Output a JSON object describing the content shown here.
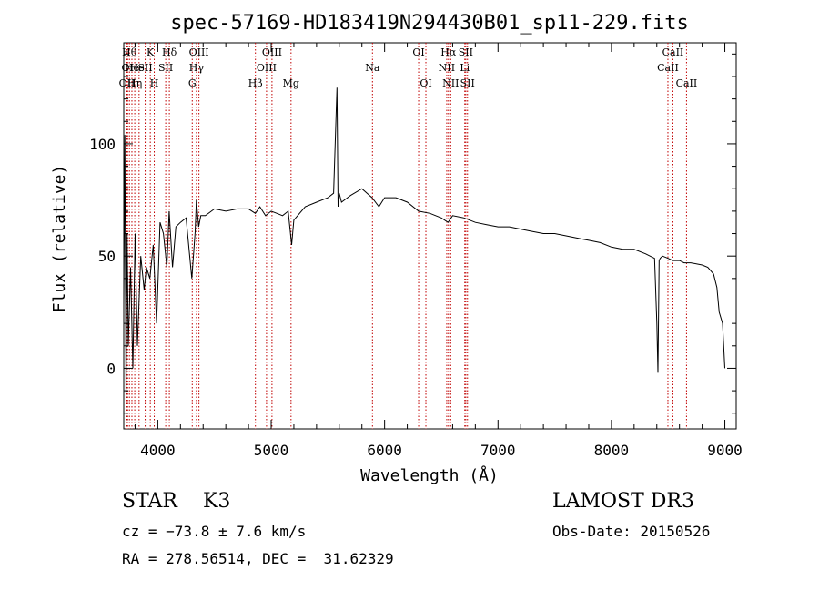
{
  "chart_data": {
    "type": "line",
    "title": "spec-57169-HD183419N294430B01_sp11-229.fits",
    "xlabel": "Wavelength (Å)",
    "ylabel": "Flux (relative)",
    "xlim": [
      3700,
      9100
    ],
    "ylim": [
      -27,
      145
    ],
    "xticks": [
      4000,
      5000,
      6000,
      7000,
      8000,
      9000
    ],
    "yticks": [
      0,
      50,
      100
    ],
    "grid": false,
    "series": [
      {
        "name": "spectrum",
        "x": [
          3700,
          3710,
          3720,
          3730,
          3740,
          3760,
          3780,
          3800,
          3820,
          3850,
          3880,
          3900,
          3930,
          3960,
          3990,
          4020,
          4050,
          4080,
          4100,
          4130,
          4160,
          4200,
          4250,
          4300,
          4330,
          4340,
          4360,
          4380,
          4420,
          4500,
          4600,
          4700,
          4800,
          4860,
          4900,
          4950,
          5000,
          5050,
          5100,
          5150,
          5180,
          5200,
          5300,
          5400,
          5500,
          5550,
          5580,
          5590,
          5600,
          5620,
          5700,
          5800,
          5890,
          5950,
          6000,
          6100,
          6200,
          6300,
          6400,
          6500,
          6560,
          6600,
          6700,
          6800,
          6900,
          7000,
          7100,
          7200,
          7300,
          7400,
          7500,
          7600,
          7700,
          7800,
          7900,
          8000,
          8100,
          8200,
          8300,
          8380,
          8400,
          8410,
          8420,
          8430,
          8450,
          8500,
          8540,
          8600,
          8640,
          8700,
          8800,
          8850,
          8900,
          8930,
          8950,
          8980,
          9000
        ],
        "values": [
          28,
          104,
          -15,
          60,
          10,
          45,
          0,
          60,
          10,
          50,
          35,
          45,
          40,
          55,
          20,
          65,
          60,
          45,
          70,
          45,
          63,
          65,
          67,
          40,
          61,
          75,
          63,
          68,
          68,
          71,
          70,
          71,
          71,
          69,
          72,
          68,
          70,
          69,
          68,
          70,
          55,
          66,
          72,
          74,
          76,
          78,
          125,
          72,
          78,
          74,
          77,
          80,
          76,
          72,
          76,
          76,
          74,
          70,
          69,
          67,
          65,
          68,
          67,
          65,
          64,
          63,
          63,
          62,
          61,
          60,
          60,
          59,
          58,
          57,
          56,
          54,
          53,
          53,
          51,
          49,
          20,
          -2,
          48,
          49,
          50,
          49,
          48,
          48,
          47,
          47,
          46,
          45,
          42,
          36,
          25,
          20,
          0
        ]
      }
    ],
    "lines": [
      {
        "wl": 3728,
        "label": "OII",
        "row": 3
      },
      {
        "wl": 3734,
        "label": "OI",
        "row": 2
      },
      {
        "wl": 3750,
        "label": "Hθ",
        "row": 1
      },
      {
        "wl": 3772,
        "label": "He",
        "row": 2
      },
      {
        "wl": 3797,
        "label": "Hη",
        "row": 3
      },
      {
        "wl": 3835,
        "label": "HeI",
        "row": 2
      },
      {
        "wl": 3889,
        "label": "SII",
        "row": 2
      },
      {
        "wl": 3934,
        "label": "K",
        "row": 1
      },
      {
        "wl": 3969,
        "label": "H",
        "row": 3
      },
      {
        "wl": 4070,
        "label": "SII",
        "row": 2
      },
      {
        "wl": 4102,
        "label": "Hδ",
        "row": 1
      },
      {
        "wl": 4304,
        "label": "G",
        "row": 3
      },
      {
        "wl": 4341,
        "label": "Hγ",
        "row": 2
      },
      {
        "wl": 4363,
        "label": "OIII",
        "row": 1
      },
      {
        "wl": 4861,
        "label": "Hβ",
        "row": 3
      },
      {
        "wl": 4959,
        "label": "OIII",
        "row": 2
      },
      {
        "wl": 5007,
        "label": "OIII",
        "row": 1
      },
      {
        "wl": 5175,
        "label": "Mg",
        "row": 3
      },
      {
        "wl": 5893,
        "label": "Na",
        "row": 2
      },
      {
        "wl": 6300,
        "label": "OI",
        "row": 1
      },
      {
        "wl": 6364,
        "label": "OI",
        "row": 3
      },
      {
        "wl": 6548,
        "label": "NII",
        "row": 2
      },
      {
        "wl": 6563,
        "label": "Hα",
        "row": 1
      },
      {
        "wl": 6583,
        "label": "NII",
        "row": 3
      },
      {
        "wl": 6707,
        "label": "Li",
        "row": 2
      },
      {
        "wl": 6716,
        "label": "SII",
        "row": 1
      },
      {
        "wl": 6731,
        "label": "SII",
        "row": 3
      },
      {
        "wl": 8498,
        "label": "CaII",
        "row": 2
      },
      {
        "wl": 8542,
        "label": "CaII",
        "row": 1
      },
      {
        "wl": 8662,
        "label": "CaII",
        "row": 3
      }
    ]
  },
  "info": {
    "class_line": "STAR    K3",
    "survey": "LAMOST DR3",
    "cz": "cz = −73.8 ± 7.6 km/s",
    "obs_date": "Obs-Date: 20150526",
    "coords": "RA = 278.56514, DEC =  31.62329"
  }
}
